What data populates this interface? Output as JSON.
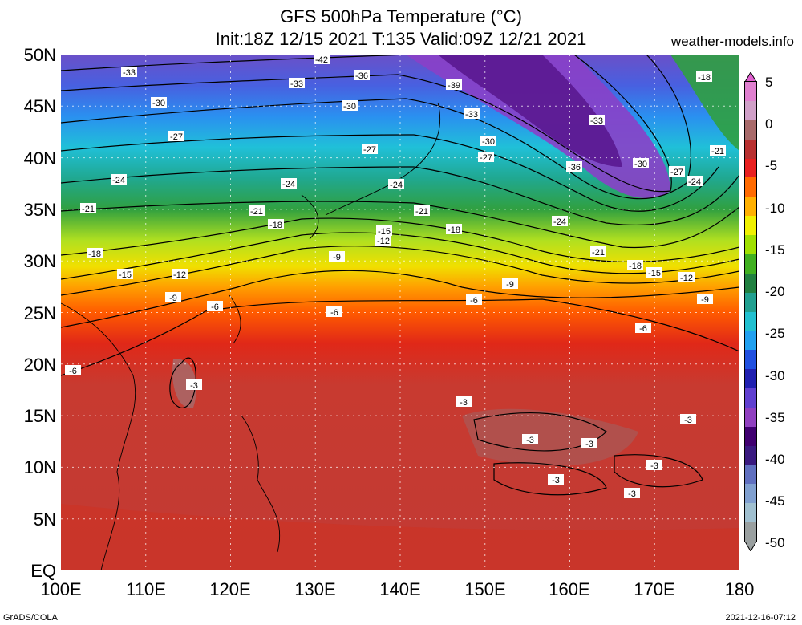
{
  "title": {
    "line1": "GFS 500hPa Temperature (°C)",
    "line2": "Init:18Z 12/15 2021 T:135 Valid:09Z 12/21 2021"
  },
  "credit": "weather-models.info",
  "footer": {
    "left": "GrADS/COLA",
    "right": "2021-12-16-07:12"
  },
  "map": {
    "lat_labels": [
      "50N",
      "45N",
      "40N",
      "35N",
      "30N",
      "25N",
      "20N",
      "15N",
      "10N",
      "5N",
      "EQ"
    ],
    "lon_labels": [
      "100E",
      "110E",
      "120E",
      "130E",
      "140E",
      "150E",
      "160E",
      "170E",
      "180"
    ],
    "extent": {
      "lon": [
        100,
        180
      ],
      "lat": [
        0,
        50
      ]
    }
  },
  "colorbar": {
    "labels": [
      "5",
      "0",
      "-5",
      "-10",
      "-15",
      "-20",
      "-25",
      "-30",
      "-35",
      "-40",
      "-45",
      "-50"
    ],
    "colors": [
      "#e080d0",
      "#d0a0c8",
      "#a86a6a",
      "#b83030",
      "#e82020",
      "#ff6a00",
      "#ffb000",
      "#f0f000",
      "#a0e000",
      "#40b020",
      "#208040",
      "#20a090",
      "#20c0d0",
      "#20a0f0",
      "#2050e0",
      "#2020b0",
      "#6040d0",
      "#9040c0",
      "#400070",
      "#3a1a80",
      "#6070c0",
      "#80a0d0",
      "#a0c0d0",
      "#9aa0a0"
    ]
  },
  "contour_labels": [
    {
      "text": "-42"
    },
    {
      "text": "-33"
    },
    {
      "text": "-36"
    },
    {
      "text": "-39"
    },
    {
      "text": "-33"
    },
    {
      "text": "-18"
    },
    {
      "text": "-30"
    },
    {
      "text": "-30"
    },
    {
      "text": "-33"
    },
    {
      "text": "-33"
    },
    {
      "text": "-27"
    },
    {
      "text": "-27"
    },
    {
      "text": "-30"
    },
    {
      "text": "-27"
    },
    {
      "text": "-36"
    },
    {
      "text": "-30"
    },
    {
      "text": "-27"
    },
    {
      "text": "-21"
    },
    {
      "text": "-24"
    },
    {
      "text": "-24"
    },
    {
      "text": "-24"
    },
    {
      "text": "-24"
    },
    {
      "text": "-21"
    },
    {
      "text": "-21"
    },
    {
      "text": "-21"
    },
    {
      "text": "-24"
    },
    {
      "text": "-18"
    },
    {
      "text": "-15"
    },
    {
      "text": "-12"
    },
    {
      "text": "-18"
    },
    {
      "text": "-18"
    },
    {
      "text": "-9"
    },
    {
      "text": "-21"
    },
    {
      "text": "-15"
    },
    {
      "text": "-12"
    },
    {
      "text": "-18"
    },
    {
      "text": "-15"
    },
    {
      "text": "-12"
    },
    {
      "text": "-9"
    },
    {
      "text": "-9"
    },
    {
      "text": "-6"
    },
    {
      "text": "-6"
    },
    {
      "text": "-6"
    },
    {
      "text": "-9"
    },
    {
      "text": "-6"
    },
    {
      "text": "-6"
    },
    {
      "text": "-3"
    },
    {
      "text": "-3"
    },
    {
      "text": "-3"
    },
    {
      "text": "-3"
    },
    {
      "text": "-3"
    },
    {
      "text": "-3"
    },
    {
      "text": "-3"
    },
    {
      "text": "-3"
    }
  ]
}
